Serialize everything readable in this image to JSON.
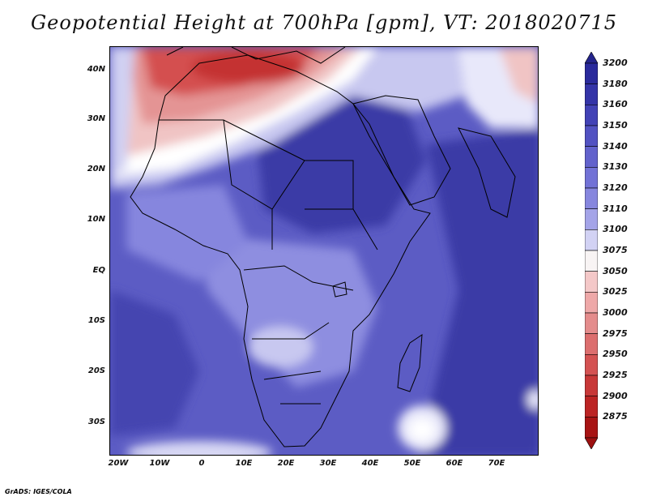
{
  "title": "Geopotential Height at 700hPa [gpm], VT: 2018020715",
  "credit": "GrADS: IGES/COLA",
  "lat_labels": [
    "40N",
    "30N",
    "20N",
    "10N",
    "EQ",
    "10S",
    "20S",
    "30S"
  ],
  "lon_labels": [
    "20W",
    "10W",
    "0",
    "10E",
    "20E",
    "30E",
    "40E",
    "50E",
    "60E",
    "70E"
  ],
  "colorbar": {
    "levels": [
      "3200",
      "3180",
      "3160",
      "3150",
      "3140",
      "3130",
      "3120",
      "3110",
      "3100",
      "3075",
      "3050",
      "3025",
      "3000",
      "2975",
      "2950",
      "2925",
      "2900",
      "2875"
    ],
    "colors": [
      "#2a2a9c",
      "#3434a8",
      "#4242b6",
      "#5252c2",
      "#6262cc",
      "#7272d6",
      "#8686de",
      "#a4a4e8",
      "#d2d2f4",
      "#f8f4f4",
      "#f4c8c8",
      "#eea8a8",
      "#e48c8c",
      "#dc6e6e",
      "#d45252",
      "#c83838",
      "#bc2424",
      "#a81414"
    ],
    "top_color": "#24248c",
    "bottom_color": "#9c1010"
  },
  "field_colors": {
    "deep": "#3a3aa6",
    "mid": "#5c5cc4",
    "light": "#8e8ee0",
    "pale": "#c8c8f0",
    "white": "#ffffff",
    "pink": "#f0c4c4",
    "rose": "#e49494",
    "red": "#d45050",
    "darkred": "#c43030"
  }
}
